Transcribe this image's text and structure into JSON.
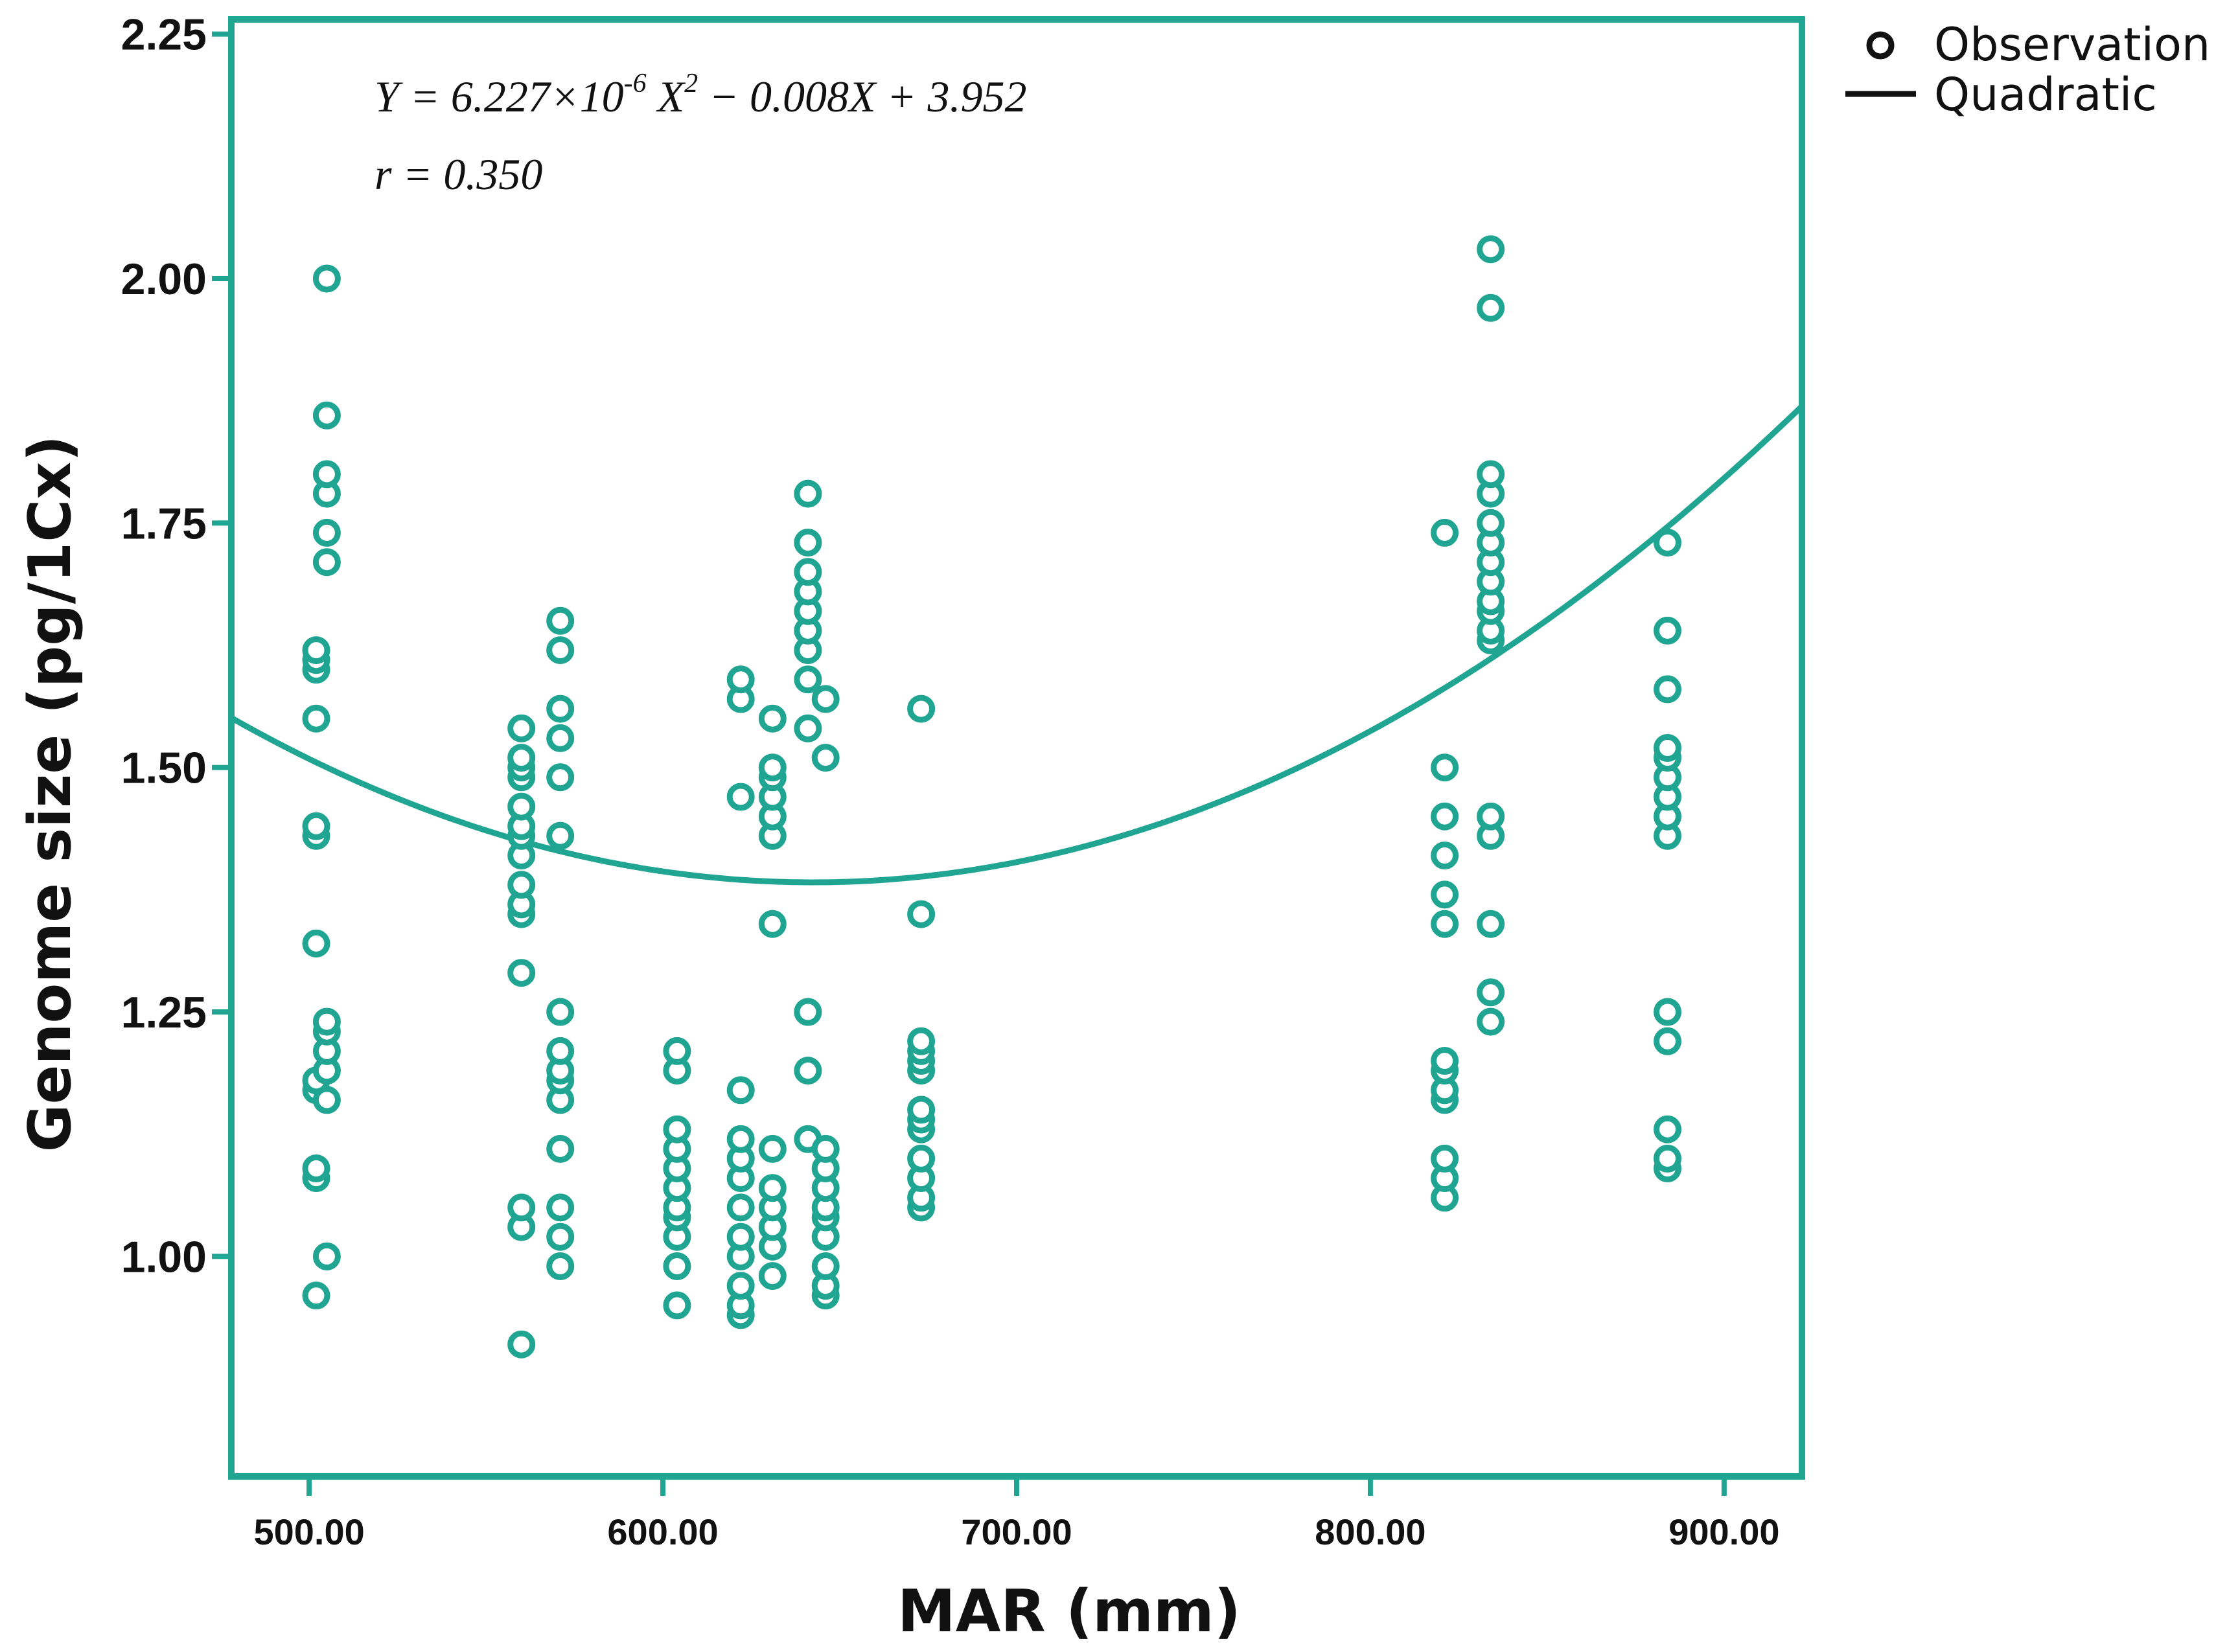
{
  "chart_data": {
    "type": "scatter",
    "title": "",
    "xlabel": "MAR (mm)",
    "ylabel": "Genome size (pg/1Cx)",
    "xlim": [
      478,
      922
    ],
    "ylim": [
      0.775,
      2.265
    ],
    "x_ticks": [
      500,
      600,
      700,
      800,
      900
    ],
    "x_tick_labels": [
      "500.00",
      "600.00",
      "700.00",
      "800.00",
      "900.00"
    ],
    "y_ticks": [
      1.0,
      1.25,
      1.5,
      1.75,
      2.0,
      2.25
    ],
    "y_tick_labels": [
      "1.00",
      "1.25",
      "1.50",
      "1.75",
      "2.00",
      "2.25"
    ],
    "color": "#1fa592",
    "equation": {
      "line1_parts": [
        "Y = 6.227×10",
        "-6",
        " X",
        "2",
        " − 0.008X + 3.952"
      ],
      "line2": "r = 0.350"
    },
    "fit": {
      "a": 6.227e-06,
      "b": -0.008,
      "c": 3.952,
      "label": "Quadratic"
    },
    "legend": [
      {
        "label": "Observation",
        "marker": "circle"
      },
      {
        "label": "Quadratic",
        "marker": "line"
      }
    ],
    "series": [
      {
        "name": "Observation",
        "points": [
          [
            502,
            0.96
          ],
          [
            502,
            1.08
          ],
          [
            502,
            1.09
          ],
          [
            502,
            1.17
          ],
          [
            502,
            1.18
          ],
          [
            502,
            1.32
          ],
          [
            502,
            1.43
          ],
          [
            502,
            1.44
          ],
          [
            502,
            1.55
          ],
          [
            502,
            1.6
          ],
          [
            502,
            1.61
          ],
          [
            502,
            1.62
          ],
          [
            505,
            1.0
          ],
          [
            505,
            1.16
          ],
          [
            505,
            1.19
          ],
          [
            505,
            1.21
          ],
          [
            505,
            1.23
          ],
          [
            505,
            1.24
          ],
          [
            505,
            1.71
          ],
          [
            505,
            1.74
          ],
          [
            505,
            1.78
          ],
          [
            505,
            1.8
          ],
          [
            505,
            1.86
          ],
          [
            505,
            2.0
          ],
          [
            560,
            0.91
          ],
          [
            560,
            1.03
          ],
          [
            560,
            1.05
          ],
          [
            560,
            1.29
          ],
          [
            560,
            1.35
          ],
          [
            560,
            1.36
          ],
          [
            560,
            1.38
          ],
          [
            560,
            1.41
          ],
          [
            560,
            1.43
          ],
          [
            560,
            1.44
          ],
          [
            560,
            1.46
          ],
          [
            560,
            1.49
          ],
          [
            560,
            1.5
          ],
          [
            560,
            1.51
          ],
          [
            560,
            1.54
          ],
          [
            571,
            0.99
          ],
          [
            571,
            1.02
          ],
          [
            571,
            1.05
          ],
          [
            571,
            1.11
          ],
          [
            571,
            1.16
          ],
          [
            571,
            1.18
          ],
          [
            571,
            1.19
          ],
          [
            571,
            1.21
          ],
          [
            571,
            1.25
          ],
          [
            571,
            1.43
          ],
          [
            571,
            1.49
          ],
          [
            571,
            1.53
          ],
          [
            571,
            1.56
          ],
          [
            571,
            1.62
          ],
          [
            571,
            1.65
          ],
          [
            604,
            0.95
          ],
          [
            604,
            0.99
          ],
          [
            604,
            1.02
          ],
          [
            604,
            1.04
          ],
          [
            604,
            1.05
          ],
          [
            604,
            1.07
          ],
          [
            604,
            1.09
          ],
          [
            604,
            1.11
          ],
          [
            604,
            1.13
          ],
          [
            604,
            1.19
          ],
          [
            604,
            1.21
          ],
          [
            622,
            0.94
          ],
          [
            622,
            0.95
          ],
          [
            622,
            0.97
          ],
          [
            622,
            1.0
          ],
          [
            622,
            1.02
          ],
          [
            622,
            1.05
          ],
          [
            622,
            1.08
          ],
          [
            622,
            1.1
          ],
          [
            622,
            1.12
          ],
          [
            622,
            1.17
          ],
          [
            622,
            1.47
          ],
          [
            622,
            1.57
          ],
          [
            622,
            1.59
          ],
          [
            631,
            0.98
          ],
          [
            631,
            1.01
          ],
          [
            631,
            1.03
          ],
          [
            631,
            1.05
          ],
          [
            631,
            1.07
          ],
          [
            631,
            1.11
          ],
          [
            631,
            1.34
          ],
          [
            631,
            1.43
          ],
          [
            631,
            1.45
          ],
          [
            631,
            1.47
          ],
          [
            631,
            1.49
          ],
          [
            631,
            1.5
          ],
          [
            631,
            1.55
          ],
          [
            641,
            1.12
          ],
          [
            641,
            1.19
          ],
          [
            641,
            1.25
          ],
          [
            641,
            1.54
          ],
          [
            641,
            1.59
          ],
          [
            641,
            1.62
          ],
          [
            641,
            1.64
          ],
          [
            641,
            1.66
          ],
          [
            641,
            1.68
          ],
          [
            641,
            1.7
          ],
          [
            641,
            1.73
          ],
          [
            641,
            1.78
          ],
          [
            646,
            0.96
          ],
          [
            646,
            0.97
          ],
          [
            646,
            0.99
          ],
          [
            646,
            1.02
          ],
          [
            646,
            1.04
          ],
          [
            646,
            1.05
          ],
          [
            646,
            1.07
          ],
          [
            646,
            1.09
          ],
          [
            646,
            1.11
          ],
          [
            646,
            1.51
          ],
          [
            646,
            1.57
          ],
          [
            673,
            1.05
          ],
          [
            673,
            1.06
          ],
          [
            673,
            1.08
          ],
          [
            673,
            1.1
          ],
          [
            673,
            1.13
          ],
          [
            673,
            1.14
          ],
          [
            673,
            1.15
          ],
          [
            673,
            1.19
          ],
          [
            673,
            1.2
          ],
          [
            673,
            1.21
          ],
          [
            673,
            1.22
          ],
          [
            673,
            1.35
          ],
          [
            673,
            1.56
          ],
          [
            821,
            1.06
          ],
          [
            821,
            1.08
          ],
          [
            821,
            1.1
          ],
          [
            821,
            1.16
          ],
          [
            821,
            1.17
          ],
          [
            821,
            1.19
          ],
          [
            821,
            1.2
          ],
          [
            821,
            1.34
          ],
          [
            821,
            1.37
          ],
          [
            821,
            1.41
          ],
          [
            821,
            1.45
          ],
          [
            821,
            1.5
          ],
          [
            821,
            1.74
          ],
          [
            834,
            1.24
          ],
          [
            834,
            1.27
          ],
          [
            834,
            1.34
          ],
          [
            834,
            1.43
          ],
          [
            834,
            1.45
          ],
          [
            834,
            1.63
          ],
          [
            834,
            1.64
          ],
          [
            834,
            1.66
          ],
          [
            834,
            1.67
          ],
          [
            834,
            1.69
          ],
          [
            834,
            1.71
          ],
          [
            834,
            1.73
          ],
          [
            834,
            1.75
          ],
          [
            834,
            1.78
          ],
          [
            834,
            1.8
          ],
          [
            834,
            1.97
          ],
          [
            834,
            2.03
          ],
          [
            884,
            1.09
          ],
          [
            884,
            1.1
          ],
          [
            884,
            1.13
          ],
          [
            884,
            1.22
          ],
          [
            884,
            1.25
          ],
          [
            884,
            1.43
          ],
          [
            884,
            1.45
          ],
          [
            884,
            1.47
          ],
          [
            884,
            1.49
          ],
          [
            884,
            1.51
          ],
          [
            884,
            1.52
          ],
          [
            884,
            1.58
          ],
          [
            884,
            1.64
          ],
          [
            884,
            1.73
          ]
        ]
      }
    ]
  }
}
